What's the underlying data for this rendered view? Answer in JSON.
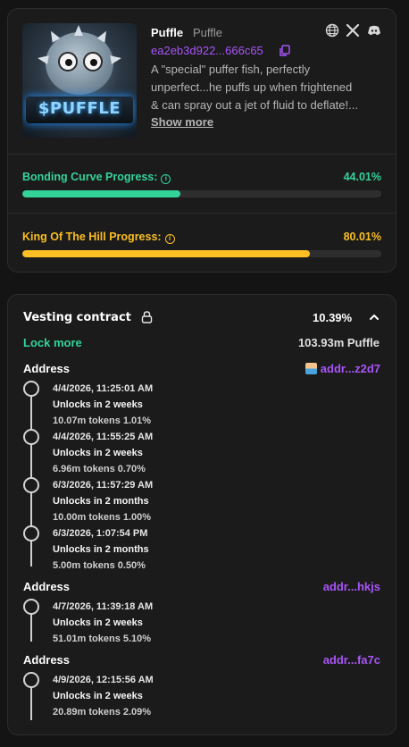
{
  "token": {
    "name": "Puffle",
    "ticker": "Puffle",
    "address": "ea2eb3d922...666c65",
    "logo_text": "$PUFFLE",
    "description_lines": [
      "A \"special\" puffer fish, perfectly",
      "unperfect...he puffs up when frightened",
      "& can spray out a jet of fluid to deflate!..."
    ],
    "show_more": "Show more",
    "social_icons": [
      "globe-icon",
      "x-icon",
      "discord-icon"
    ]
  },
  "progress": {
    "bonding": {
      "label": "Bonding Curve Progress:",
      "value_text": "44.01%",
      "value": 44.01,
      "color": "#34d399"
    },
    "koth": {
      "label": "King Of The Hill Progress:",
      "value_text": "80.01%",
      "value": 80.01,
      "color": "#fbbf24"
    }
  },
  "vesting": {
    "title": "Vesting contract",
    "percent": "10.39%",
    "lock_more": "Lock more",
    "amount": "103.93m Puffle",
    "groups": [
      {
        "label": "Address",
        "address": "addr...z2d7",
        "entries": [
          {
            "date": "4/4/2026, 11:25:01 AM",
            "unlock": "Unlocks in 2 weeks",
            "tokens": "10.07m tokens 1.01%"
          },
          {
            "date": "4/4/2026, 11:55:25 AM",
            "unlock": "Unlocks in 2 weeks",
            "tokens": "6.96m tokens 0.70%"
          },
          {
            "date": "6/3/2026, 11:57:29 AM",
            "unlock": "Unlocks in 2 months",
            "tokens": "10.00m tokens 1.00%"
          },
          {
            "date": "6/3/2026, 1:07:54 PM",
            "unlock": "Unlocks in 2 months",
            "tokens": "5.00m tokens 0.50%"
          }
        ]
      },
      {
        "label": "Address",
        "address": "addr...hkjs",
        "entries": [
          {
            "date": "4/7/2026, 11:39:18 AM",
            "unlock": "Unlocks in 2 weeks",
            "tokens": "51.01m tokens 5.10%"
          }
        ]
      },
      {
        "label": "Address",
        "address": "addr...fa7c",
        "entries": [
          {
            "date": "4/9/2026, 12:15:56 AM",
            "unlock": "Unlocks in 2 weeks",
            "tokens": "20.89m tokens 2.09%"
          }
        ]
      }
    ]
  }
}
